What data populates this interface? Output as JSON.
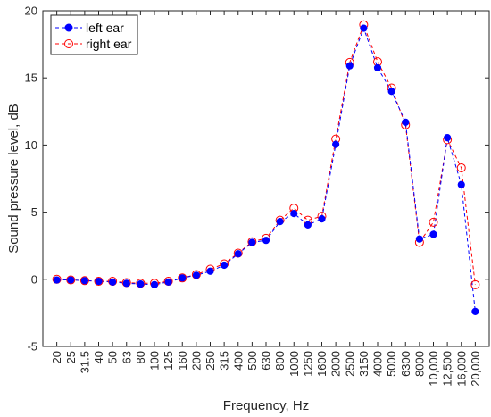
{
  "chart_data": {
    "type": "line",
    "xlabel": "Frequency, Hz",
    "ylabel": "Sound pressure level, dB",
    "ylim": [
      -5,
      20
    ],
    "yticks": [
      -5,
      0,
      5,
      10,
      15,
      20
    ],
    "grid": false,
    "legend_position": "top-left",
    "categories": [
      "20",
      "25",
      "31.5",
      "40",
      "50",
      "63",
      "80",
      "100",
      "125",
      "160",
      "200",
      "250",
      "315",
      "400",
      "500",
      "630",
      "800",
      "1000",
      "1250",
      "1600",
      "2000",
      "2500",
      "3150",
      "4000",
      "5000",
      "6300",
      "8000",
      "10,000",
      "12,500",
      "16,000",
      "20,000"
    ],
    "series": [
      {
        "name": "left ear",
        "color": "#0000ff",
        "marker": "filled-circle",
        "values": [
          -0.05,
          -0.05,
          -0.1,
          -0.15,
          -0.2,
          -0.3,
          -0.35,
          -0.4,
          -0.2,
          0.1,
          0.3,
          0.6,
          1.05,
          1.9,
          2.75,
          2.9,
          4.3,
          4.9,
          4.05,
          4.5,
          10.05,
          15.9,
          18.7,
          15.75,
          14.0,
          11.7,
          3.0,
          3.35,
          10.55,
          7.05,
          -2.4
        ]
      },
      {
        "name": "right ear",
        "color": "#ff0000",
        "marker": "open-circle",
        "values": [
          0.0,
          -0.05,
          -0.1,
          -0.15,
          -0.15,
          -0.25,
          -0.3,
          -0.3,
          -0.15,
          0.1,
          0.35,
          0.75,
          1.15,
          1.95,
          2.8,
          3.05,
          4.4,
          5.3,
          4.4,
          4.7,
          10.45,
          16.15,
          18.95,
          16.2,
          14.25,
          11.5,
          2.75,
          4.25,
          10.4,
          8.3,
          -0.4
        ]
      }
    ]
  }
}
